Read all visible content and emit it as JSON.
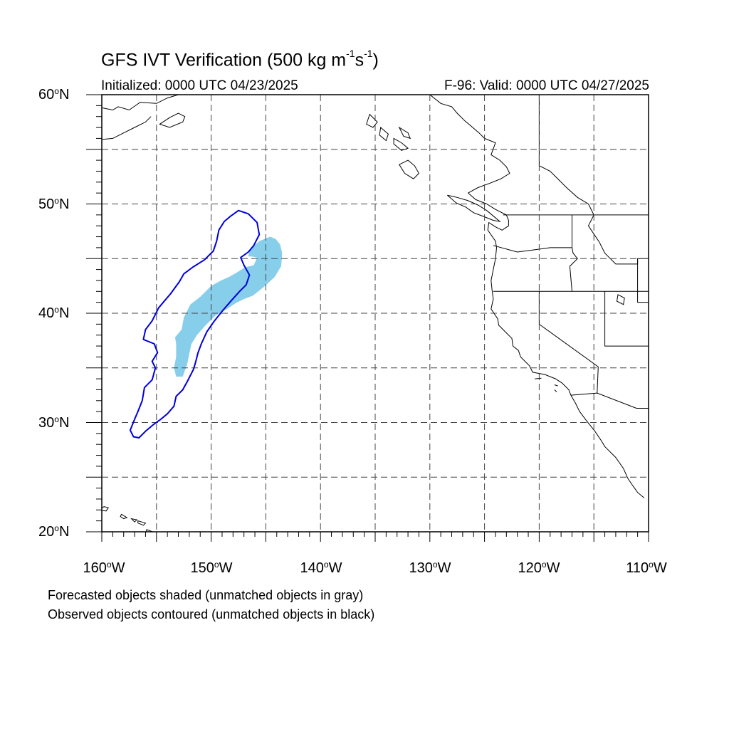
{
  "title": {
    "main": "GFS IVT Verification (500 kg m",
    "sup1": "-1",
    "mid": "s",
    "sup2": "-1",
    "end": ")"
  },
  "subtitle_left": "Initialized: 0000 UTC 04/23/2025",
  "subtitle_right": "F-96: Valid: 0000 UTC 04/27/2025",
  "lat_labels": [
    {
      "num": "60",
      "hemi": "N"
    },
    {
      "num": "50",
      "hemi": "N"
    },
    {
      "num": "40",
      "hemi": "N"
    },
    {
      "num": "30",
      "hemi": "N"
    },
    {
      "num": "20",
      "hemi": "N"
    }
  ],
  "lon_labels": [
    {
      "num": "160",
      "hemi": "W"
    },
    {
      "num": "150",
      "hemi": "W"
    },
    {
      "num": "140",
      "hemi": "W"
    },
    {
      "num": "130",
      "hemi": "W"
    },
    {
      "num": "120",
      "hemi": "W"
    },
    {
      "num": "110",
      "hemi": "W"
    }
  ],
  "notes": [
    "Forecasted objects shaded (unmatched objects in gray)",
    "Observed objects contoured (unmatched objects in black)"
  ],
  "colors": {
    "forecast_fill": "#87ceeb",
    "observed_contour": "#0000dd",
    "coastline": "#000000",
    "grid": "#444444"
  },
  "map": {
    "projection": "cylindrical equidistant",
    "lon_range": [
      -160,
      -110
    ],
    "lat_range": [
      20,
      60
    ],
    "gridlines_lon": [
      -155,
      -150,
      -145,
      -140,
      -135,
      -130,
      -125,
      -120,
      -115
    ],
    "gridlines_lat": [
      25,
      30,
      35,
      40,
      45,
      50,
      55
    ],
    "forecast_object": [
      [
        -153.2,
        34.2
      ],
      [
        -153.4,
        35.0
      ],
      [
        -153.2,
        36.0
      ],
      [
        -153.2,
        37.2
      ],
      [
        -153.3,
        37.8
      ],
      [
        -152.7,
        38.5
      ],
      [
        -152.5,
        39.6
      ],
      [
        -151.9,
        40.8
      ],
      [
        -151.0,
        41.5
      ],
      [
        -150.0,
        42.5
      ],
      [
        -149.1,
        43.0
      ],
      [
        -148.4,
        43.3
      ],
      [
        -147.7,
        43.7
      ],
      [
        -146.9,
        44.2
      ],
      [
        -146.1,
        44.4
      ],
      [
        -145.8,
        45.1
      ],
      [
        -146.3,
        45.2
      ],
      [
        -146.6,
        45.2
      ],
      [
        -146.5,
        45.8
      ],
      [
        -145.6,
        46.6
      ],
      [
        -144.6,
        47.0
      ],
      [
        -144.1,
        46.8
      ],
      [
        -143.7,
        46.3
      ],
      [
        -143.5,
        45.5
      ],
      [
        -143.6,
        44.3
      ],
      [
        -144.2,
        43.3
      ],
      [
        -145.2,
        42.4
      ],
      [
        -146.2,
        41.6
      ],
      [
        -147.0,
        41.3
      ],
      [
        -147.8,
        40.9
      ],
      [
        -148.7,
        40.3
      ],
      [
        -149.6,
        39.8
      ],
      [
        -150.6,
        38.8
      ],
      [
        -151.3,
        38.0
      ],
      [
        -151.8,
        37.2
      ],
      [
        -152.0,
        36.3
      ],
      [
        -152.2,
        35.3
      ],
      [
        -152.6,
        34.2
      ]
    ],
    "observed_object": [
      [
        -157.1,
        28.7
      ],
      [
        -157.4,
        29.3
      ],
      [
        -157.0,
        30.3
      ],
      [
        -156.7,
        31.0
      ],
      [
        -156.3,
        32.0
      ],
      [
        -156.1,
        33.2
      ],
      [
        -155.4,
        33.9
      ],
      [
        -155.1,
        35.0
      ],
      [
        -155.4,
        35.6
      ],
      [
        -154.9,
        36.4
      ],
      [
        -155.2,
        37.2
      ],
      [
        -156.2,
        37.6
      ],
      [
        -156.0,
        38.5
      ],
      [
        -155.4,
        39.3
      ],
      [
        -154.8,
        40.5
      ],
      [
        -153.7,
        41.8
      ],
      [
        -152.9,
        42.9
      ],
      [
        -152.5,
        43.6
      ],
      [
        -151.7,
        44.2
      ],
      [
        -150.6,
        44.9
      ],
      [
        -149.8,
        45.7
      ],
      [
        -149.5,
        46.6
      ],
      [
        -149.3,
        47.6
      ],
      [
        -148.8,
        48.4
      ],
      [
        -148.2,
        48.9
      ],
      [
        -147.5,
        49.4
      ],
      [
        -146.6,
        49.1
      ],
      [
        -145.8,
        48.3
      ],
      [
        -145.6,
        47.2
      ],
      [
        -146.1,
        46.2
      ],
      [
        -146.6,
        45.6
      ],
      [
        -147.3,
        45.1
      ],
      [
        -147.0,
        44.4
      ],
      [
        -146.5,
        43.5
      ],
      [
        -146.8,
        42.6
      ],
      [
        -147.4,
        42.0
      ],
      [
        -148.2,
        41.1
      ],
      [
        -148.9,
        40.3
      ],
      [
        -149.7,
        39.3
      ],
      [
        -150.4,
        38.3
      ],
      [
        -150.9,
        37.2
      ],
      [
        -151.2,
        36.4
      ],
      [
        -151.4,
        35.6
      ],
      [
        -151.6,
        34.9
      ],
      [
        -152.1,
        33.9
      ],
      [
        -152.6,
        33.0
      ],
      [
        -153.2,
        32.4
      ],
      [
        -153.4,
        31.5
      ],
      [
        -154.0,
        30.8
      ],
      [
        -154.6,
        30.3
      ],
      [
        -155.3,
        29.8
      ],
      [
        -156.0,
        29.2
      ],
      [
        -156.6,
        28.6
      ]
    ],
    "coastline": [
      [
        -130.0,
        60.0
      ],
      [
        -129.5,
        59.6
      ],
      [
        -129.0,
        59.2
      ],
      [
        -128.0,
        58.9
      ],
      [
        -127.5,
        58.3
      ],
      [
        -126.8,
        57.6
      ],
      [
        -126.2,
        57.1
      ],
      [
        -125.5,
        56.5
      ],
      [
        -125.0,
        56.0
      ],
      [
        -124.0,
        55.6
      ],
      [
        -124.4,
        54.5
      ],
      [
        -123.6,
        54.0
      ],
      [
        -123.0,
        53.4
      ],
      [
        -122.7,
        52.8
      ],
      [
        -123.5,
        52.3
      ],
      [
        -124.5,
        51.9
      ],
      [
        -125.6,
        51.5
      ],
      [
        -126.5,
        51.0
      ],
      [
        -125.8,
        50.4
      ],
      [
        -124.8,
        50.0
      ],
      [
        -124.0,
        49.5
      ],
      [
        -123.0,
        49.0
      ],
      [
        -122.8,
        48.5
      ],
      [
        -122.8,
        48.0
      ],
      [
        -123.4,
        47.6
      ],
      [
        -124.0,
        47.9
      ],
      [
        -124.6,
        48.3
      ],
      [
        -124.7,
        47.6
      ],
      [
        -124.0,
        46.6
      ],
      [
        -123.9,
        46.0
      ],
      [
        -124.0,
        45.0
      ],
      [
        -124.2,
        44.0
      ],
      [
        -124.4,
        43.0
      ],
      [
        -124.3,
        42.0
      ],
      [
        -124.2,
        41.3
      ],
      [
        -124.4,
        40.4
      ],
      [
        -123.8,
        39.5
      ],
      [
        -123.7,
        38.9
      ],
      [
        -123.0,
        38.2
      ],
      [
        -122.5,
        37.7
      ],
      [
        -122.4,
        37.0
      ],
      [
        -121.9,
        36.6
      ],
      [
        -121.7,
        36.0
      ],
      [
        -120.9,
        35.2
      ],
      [
        -120.6,
        34.6
      ],
      [
        -119.5,
        34.4
      ],
      [
        -118.5,
        34.0
      ],
      [
        -117.9,
        33.6
      ],
      [
        -117.3,
        33.0
      ],
      [
        -117.1,
        32.5
      ],
      [
        -116.7,
        31.8
      ],
      [
        -116.3,
        31.0
      ],
      [
        -115.7,
        30.2
      ],
      [
        -114.9,
        29.2
      ],
      [
        -114.3,
        28.3
      ],
      [
        -114.0,
        27.8
      ],
      [
        -113.0,
        26.8
      ],
      [
        -112.3,
        25.8
      ],
      [
        -111.9,
        24.9
      ],
      [
        -111.5,
        24.3
      ],
      [
        -111.0,
        23.6
      ],
      [
        -110.4,
        23.1
      ]
    ],
    "borders": [
      [
        [
          -123.3,
          49.0
        ],
        [
          -110.0,
          49.0
        ]
      ],
      [
        [
          -124.2,
          42.0
        ],
        [
          -110.0,
          42.0
        ]
      ],
      [
        [
          -120.0,
          42.0
        ],
        [
          -120.0,
          39.0
        ],
        [
          -114.6,
          35.1
        ],
        [
          -114.7,
          32.7
        ]
      ],
      [
        [
          -117.1,
          32.5
        ],
        [
          -114.7,
          32.7
        ],
        [
          -111.1,
          31.3
        ],
        [
          -110.0,
          31.3
        ]
      ],
      [
        [
          -117.0,
          49.0
        ],
        [
          -117.0,
          46.0
        ],
        [
          -116.9,
          45.5
        ],
        [
          -116.5,
          45.0
        ],
        [
          -117.2,
          44.3
        ],
        [
          -117.0,
          42.0
        ]
      ],
      [
        [
          -124.2,
          46.2
        ],
        [
          -122.0,
          45.6
        ],
        [
          -119.0,
          46.0
        ],
        [
          -117.0,
          46.0
        ]
      ],
      [
        [
          -114.0,
          42.0
        ],
        [
          -114.0,
          37.0
        ],
        [
          -110.0,
          37.0
        ]
      ],
      [
        [
          -115.0,
          49.0
        ],
        [
          -115.5,
          48.0
        ],
        [
          -114.5,
          46.5
        ],
        [
          -114.0,
          45.5
        ],
        [
          -113.0,
          44.5
        ],
        [
          -111.5,
          44.5
        ],
        [
          -111.0,
          44.5
        ],
        [
          -111.0,
          45.0
        ],
        [
          -110.0,
          45.0
        ]
      ],
      [
        [
          -111.0,
          45.0
        ],
        [
          -111.0,
          41.0
        ],
        [
          -110.0,
          41.0
        ]
      ],
      [
        [
          -120.0,
          60.0
        ],
        [
          -120.0,
          53.5
        ],
        [
          -119.0,
          53.0
        ],
        [
          -118.5,
          52.5
        ],
        [
          -117.5,
          51.5
        ],
        [
          -116.5,
          50.6
        ],
        [
          -115.5,
          50.0
        ],
        [
          -115.0,
          49.0
        ]
      ]
    ],
    "alaska_coast": [
      [
        -160.0,
        58.8
      ],
      [
        -159.0,
        58.6
      ],
      [
        -158.5,
        58.9
      ],
      [
        -157.5,
        58.6
      ],
      [
        -156.5,
        59.3
      ],
      [
        -155.0,
        59.2
      ],
      [
        -154.0,
        59.7
      ],
      [
        -153.0,
        60.0
      ]
    ],
    "alaska_coast2": [
      [
        -160.0,
        55.9
      ],
      [
        -159.0,
        56.0
      ],
      [
        -158.0,
        56.5
      ],
      [
        -157.0,
        57.0
      ],
      [
        -156.0,
        57.5
      ],
      [
        -155.5,
        58.0
      ]
    ],
    "kodiak": [
      [
        -154.7,
        57.3
      ],
      [
        -153.8,
        57.0
      ],
      [
        -152.6,
        57.5
      ],
      [
        -152.4,
        58.0
      ],
      [
        -153.0,
        58.3
      ],
      [
        -153.8,
        57.9
      ],
      [
        -154.7,
        57.3
      ]
    ],
    "haida_gwaii": [
      [
        -132.0,
        54.0
      ],
      [
        -131.4,
        53.5
      ],
      [
        -131.0,
        52.8
      ],
      [
        -131.5,
        52.3
      ],
      [
        -132.3,
        52.8
      ],
      [
        -132.8,
        53.6
      ],
      [
        -132.0,
        54.0
      ]
    ],
    "alexander_islands": [
      [
        [
          -135.5,
          58.2
        ],
        [
          -134.8,
          57.5
        ],
        [
          -135.2,
          57.0
        ],
        [
          -135.8,
          57.3
        ],
        [
          -135.5,
          58.2
        ]
      ],
      [
        [
          -134.5,
          57.0
        ],
        [
          -133.8,
          56.4
        ],
        [
          -134.0,
          55.8
        ],
        [
          -134.6,
          56.3
        ],
        [
          -134.5,
          57.0
        ]
      ],
      [
        [
          -133.3,
          56.0
        ],
        [
          -132.6,
          55.6
        ],
        [
          -132.0,
          55.1
        ],
        [
          -132.6,
          54.9
        ],
        [
          -133.3,
          55.5
        ],
        [
          -133.3,
          56.0
        ]
      ],
      [
        [
          -132.8,
          57.0
        ],
        [
          -132.0,
          56.5
        ],
        [
          -131.8,
          56.0
        ],
        [
          -132.4,
          56.2
        ],
        [
          -132.8,
          57.0
        ]
      ]
    ],
    "vancouver_island": [
      [
        -128.4,
        50.8
      ],
      [
        -127.5,
        50.6
      ],
      [
        -126.5,
        50.3
      ],
      [
        -125.6,
        49.9
      ],
      [
        -124.8,
        49.4
      ],
      [
        -123.6,
        48.4
      ],
      [
        -124.2,
        48.5
      ],
      [
        -125.2,
        48.9
      ],
      [
        -126.0,
        49.2
      ],
      [
        -126.7,
        49.7
      ],
      [
        -127.6,
        50.1
      ],
      [
        -128.4,
        50.8
      ]
    ],
    "hawaii": [
      [
        [
          -160.3,
          22.0
        ],
        [
          -159.6,
          21.9
        ],
        [
          -159.4,
          22.2
        ],
        [
          -159.8,
          22.3
        ],
        [
          -160.3,
          22.0
        ]
      ],
      [
        [
          -158.2,
          21.6
        ],
        [
          -157.7,
          21.3
        ],
        [
          -158.0,
          21.2
        ],
        [
          -158.3,
          21.4
        ],
        [
          -158.2,
          21.6
        ]
      ],
      [
        [
          -157.3,
          21.2
        ],
        [
          -156.8,
          21.1
        ],
        [
          -157.0,
          20.9
        ],
        [
          -157.3,
          21.2
        ]
      ],
      [
        [
          -156.7,
          21.0
        ],
        [
          -156.0,
          20.8
        ],
        [
          -156.2,
          20.6
        ],
        [
          -156.7,
          20.8
        ],
        [
          -156.7,
          21.0
        ]
      ],
      [
        [
          -155.9,
          20.2
        ],
        [
          -155.1,
          19.9
        ],
        [
          -154.8,
          19.5
        ],
        [
          -155.6,
          18.9
        ],
        [
          -156.0,
          19.6
        ],
        [
          -155.9,
          20.2
        ]
      ]
    ],
    "channel_islands": [
      [
        [
          -120.4,
          34.0
        ],
        [
          -119.8,
          34.05
        ],
        [
          -120.4,
          34.0
        ]
      ],
      [
        [
          -118.6,
          33.45
        ],
        [
          -118.3,
          33.35
        ],
        [
          -118.6,
          33.45
        ]
      ],
      [
        [
          -118.6,
          33.0
        ],
        [
          -118.4,
          32.8
        ],
        [
          -118.6,
          33.0
        ]
      ]
    ],
    "lakes": [
      [
        [
          -112.8,
          41.7
        ],
        [
          -112.2,
          41.4
        ],
        [
          -112.3,
          40.8
        ],
        [
          -112.9,
          41.1
        ],
        [
          -112.8,
          41.7
        ]
      ]
    ]
  }
}
